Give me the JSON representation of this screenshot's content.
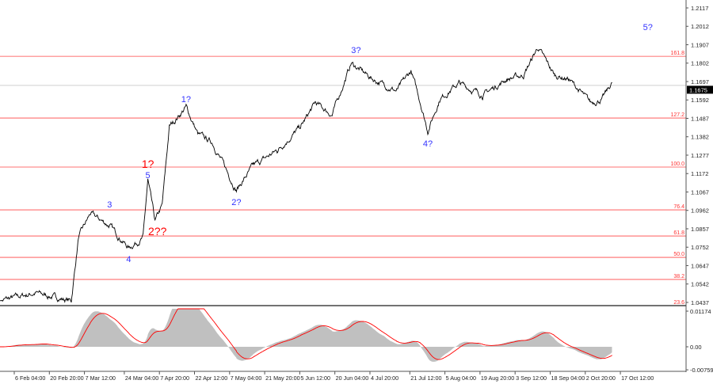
{
  "chart_data": {
    "type": "line",
    "title": "",
    "xlabel": "",
    "ylabel": "",
    "x_ticks": [
      "6 Feb 04:00",
      "20 Feb 20:00",
      "7 Mar 12:00",
      "24 Mar 04:00",
      "7 Apr 20:00",
      "22 Apr 12:00",
      "7 May 04:00",
      "21 May 20:00",
      "5 Jun 12:00",
      "20 Jun 04:00",
      "4 Jul 20:00",
      "21 Jul 12:00",
      "5 Aug 04:00",
      "19 Aug 20:00",
      "3 Sep 12:00",
      "18 Sep 04:00",
      "2 Oct 20:00",
      "17 Oct 12:00"
    ],
    "x_tick_dates": [
      "2025-02-06",
      "2025-02-20",
      "2025-03-07",
      "2025-03-24",
      "2025-04-07",
      "2025-04-22",
      "2025-05-07",
      "2025-05-21",
      "2025-06-05",
      "2025-06-20",
      "2025-07-04",
      "2025-07-21",
      "2025-08-05",
      "2025-08-19",
      "2025-09-03",
      "2025-09-18",
      "2025-10-02",
      "2025-10-17"
    ],
    "y_ticks": [
      "1.2117",
      "1.2012",
      "1.1907",
      "1.1802",
      "1.1697",
      "1.1592",
      "1.1487",
      "1.1382",
      "1.1277",
      "1.1172",
      "1.1067",
      "1.0962",
      "1.0857",
      "1.0752",
      "1.0647",
      "1.0542",
      "1.0437"
    ],
    "ylim": [
      1.0419,
      1.2162
    ],
    "current_price": "1.1675",
    "series": [
      {
        "color": "#000000",
        "x": [
          "2025-01-31",
          "2025-02-15",
          "2025-03-02",
          "2025-03-05",
          "2025-03-10",
          "2025-03-18",
          "2025-03-26",
          "2025-04-01",
          "2025-04-03",
          "2025-04-06",
          "2025-04-09",
          "2025-04-12",
          "2025-04-19",
          "2025-04-24",
          "2025-04-30",
          "2025-05-10",
          "2025-05-17",
          "2025-05-27",
          "2025-06-06",
          "2025-06-12",
          "2025-06-19",
          "2025-06-27",
          "2025-07-06",
          "2025-07-16",
          "2025-07-22",
          "2025-07-26",
          "2025-07-29",
          "2025-08-03",
          "2025-08-11",
          "2025-08-21",
          "2025-08-31",
          "2025-09-07",
          "2025-09-13",
          "2025-09-20",
          "2025-09-26",
          "2025-10-05",
          "2025-10-10",
          "2025-10-14"
        ],
        "y": [
          1.0446,
          1.0491,
          1.0446,
          1.0807,
          1.0943,
          1.0875,
          1.0748,
          1.0807,
          1.1132,
          1.0897,
          1.0988,
          1.1439,
          1.1552,
          1.1394,
          1.1349,
          1.1078,
          1.1214,
          1.1304,
          1.1439,
          1.1575,
          1.1507,
          1.1801,
          1.1711,
          1.1643,
          1.1756,
          1.1575,
          1.1417,
          1.1598,
          1.1688,
          1.162,
          1.1711,
          1.1733,
          1.1891,
          1.1733,
          1.1711,
          1.1575,
          1.1598,
          1.1688
        ]
      }
    ],
    "fib_levels": [
      {
        "label": "161.8",
        "price": 1.1841
      },
      {
        "label": "127.2",
        "price": 1.1489
      },
      {
        "label": "100.0",
        "price": 1.1209
      },
      {
        "label": "76.4",
        "price": 1.0965
      },
      {
        "label": "61.8",
        "price": 1.0816
      },
      {
        "label": "50.0",
        "price": 1.0694
      },
      {
        "label": "38.2",
        "price": 1.0568
      },
      {
        "label": "23.6",
        "price": 1.0419
      }
    ],
    "wave_labels": [
      {
        "text": "3",
        "date": "2025-03-18",
        "price": 1.0997,
        "color": "#3333ff"
      },
      {
        "text": "4",
        "date": "2025-03-26",
        "price": 1.0685,
        "color": "#3333ff"
      },
      {
        "text": "5",
        "date": "2025-04-03",
        "price": 1.1164,
        "color": "#3333ff"
      },
      {
        "text": "1?",
        "date": "2025-04-03",
        "price": 1.1223,
        "color": "#ff0000"
      },
      {
        "text": "2??",
        "date": "2025-04-07",
        "price": 1.0839,
        "color": "#ff0000"
      },
      {
        "text": "1?",
        "date": "2025-04-19",
        "price": 1.1598,
        "color": "#3333ff"
      },
      {
        "text": "2?",
        "date": "2025-05-10",
        "price": 1.101,
        "color": "#3333ff"
      },
      {
        "text": "3?",
        "date": "2025-06-29",
        "price": 1.1878,
        "color": "#3333ff"
      },
      {
        "text": "4?",
        "date": "2025-07-29",
        "price": 1.1345,
        "color": "#3333ff"
      },
      {
        "text": "5?",
        "date": "2025-10-29",
        "price": 1.2009,
        "color": "#3333ff"
      }
    ],
    "oscillator": {
      "y_ticks": [
        "0.01174",
        "0.00",
        "-0.00759"
      ],
      "ylim": [
        -0.00759,
        0.01174
      ],
      "histogram_color": "#c0c0c0",
      "signal_color": "#ff0000"
    },
    "colors": {
      "fib_line": "#ff4444",
      "fib_label": "#ff3333",
      "price_line": "#c0c0c0"
    }
  }
}
